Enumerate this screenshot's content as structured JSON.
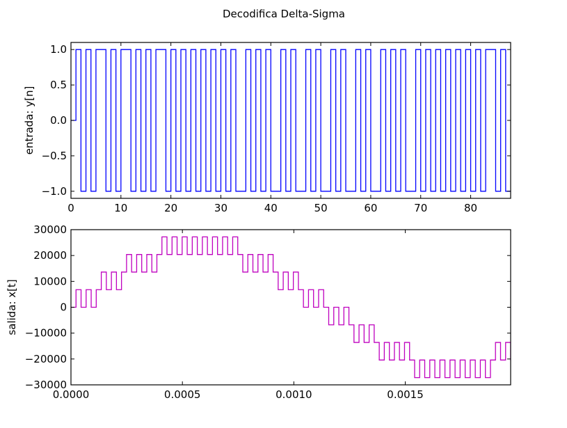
{
  "figure": {
    "title": "Decodifica Delta-Sigma",
    "background": "#ffffff"
  },
  "chart_data": [
    {
      "type": "line",
      "drawstyle": "steps-post",
      "title": "",
      "xlabel": "",
      "ylabel": "entrada: y[n]",
      "xlim": [
        0,
        88
      ],
      "ylim": [
        -1.1,
        1.1
      ],
      "xticks": [
        0,
        10,
        20,
        30,
        40,
        50,
        60,
        70,
        80
      ],
      "xtick_labels": [
        "0",
        "10",
        "20",
        "30",
        "40",
        "50",
        "60",
        "70",
        "80"
      ],
      "yticks": [
        1.0,
        0.5,
        0.0,
        -0.5,
        -1.0
      ],
      "ytick_labels": [
        "1.0",
        "0.5",
        "0.0",
        "−0.5",
        "−1.0"
      ],
      "grid": false,
      "legend": null,
      "series": [
        {
          "name": "y[n]",
          "color": "#0000ff",
          "x_start": 0,
          "x_step": 1,
          "values": [
            0,
            1,
            -1,
            1,
            -1,
            1,
            1,
            -1,
            1,
            -1,
            1,
            1,
            -1,
            1,
            -1,
            1,
            -1,
            1,
            1,
            -1,
            1,
            -1,
            1,
            -1,
            1,
            -1,
            1,
            -1,
            1,
            -1,
            1,
            -1,
            1,
            -1,
            -1,
            1,
            -1,
            1,
            -1,
            1,
            -1,
            -1,
            1,
            -1,
            1,
            -1,
            -1,
            1,
            -1,
            1,
            -1,
            -1,
            1,
            -1,
            1,
            -1,
            -1,
            1,
            -1,
            1,
            -1,
            -1,
            1,
            -1,
            1,
            -1,
            1,
            -1,
            -1,
            1,
            -1,
            1,
            -1,
            1,
            -1,
            1,
            -1,
            1,
            -1,
            1,
            -1,
            1,
            -1,
            1,
            1,
            -1,
            1,
            -1
          ]
        }
      ]
    },
    {
      "type": "line",
      "drawstyle": "steps-post",
      "title": "",
      "xlabel": "",
      "ylabel": "salida: x[t]",
      "xlim": [
        0,
        0.0019728
      ],
      "ylim": [
        -30000,
        30000
      ],
      "xticks": [
        0,
        0.0005,
        0.001,
        0.0015
      ],
      "xtick_labels": [
        "0.0000",
        "0.0005",
        "0.0010",
        "0.0015"
      ],
      "yticks": [
        30000,
        20000,
        10000,
        0,
        -10000,
        -20000,
        -30000
      ],
      "ytick_labels": [
        "30000",
        "20000",
        "10000",
        "0",
        "−10000",
        "−20000",
        "−30000"
      ],
      "grid": false,
      "legend": null,
      "series": [
        {
          "name": "x[t]",
          "color": "#bf00bf",
          "x_start": 0,
          "x_step": 2.2676e-05,
          "step_size": 6800,
          "values": [
            0,
            6800,
            0,
            6800,
            0,
            6800,
            13600,
            6800,
            13600,
            6800,
            13600,
            20400,
            13600,
            20400,
            13600,
            20400,
            13600,
            20400,
            27200,
            20400,
            27200,
            20400,
            27200,
            20400,
            27200,
            20400,
            27200,
            20400,
            27200,
            20400,
            27200,
            20400,
            27200,
            20400,
            13600,
            20400,
            13600,
            20400,
            13600,
            20400,
            13600,
            6800,
            13600,
            6800,
            13600,
            6800,
            0,
            6800,
            0,
            6800,
            0,
            -6800,
            0,
            -6800,
            0,
            -6800,
            -13600,
            -6800,
            -13600,
            -6800,
            -13600,
            -20400,
            -13600,
            -20400,
            -13600,
            -20400,
            -13600,
            -20400,
            -27200,
            -20400,
            -27200,
            -20400,
            -27200,
            -20400,
            -27200,
            -20400,
            -27200,
            -20400,
            -27200,
            -20400,
            -27200,
            -20400,
            -27200,
            -20400,
            -13600,
            -20400,
            -13600,
            -20400
          ]
        }
      ]
    }
  ]
}
